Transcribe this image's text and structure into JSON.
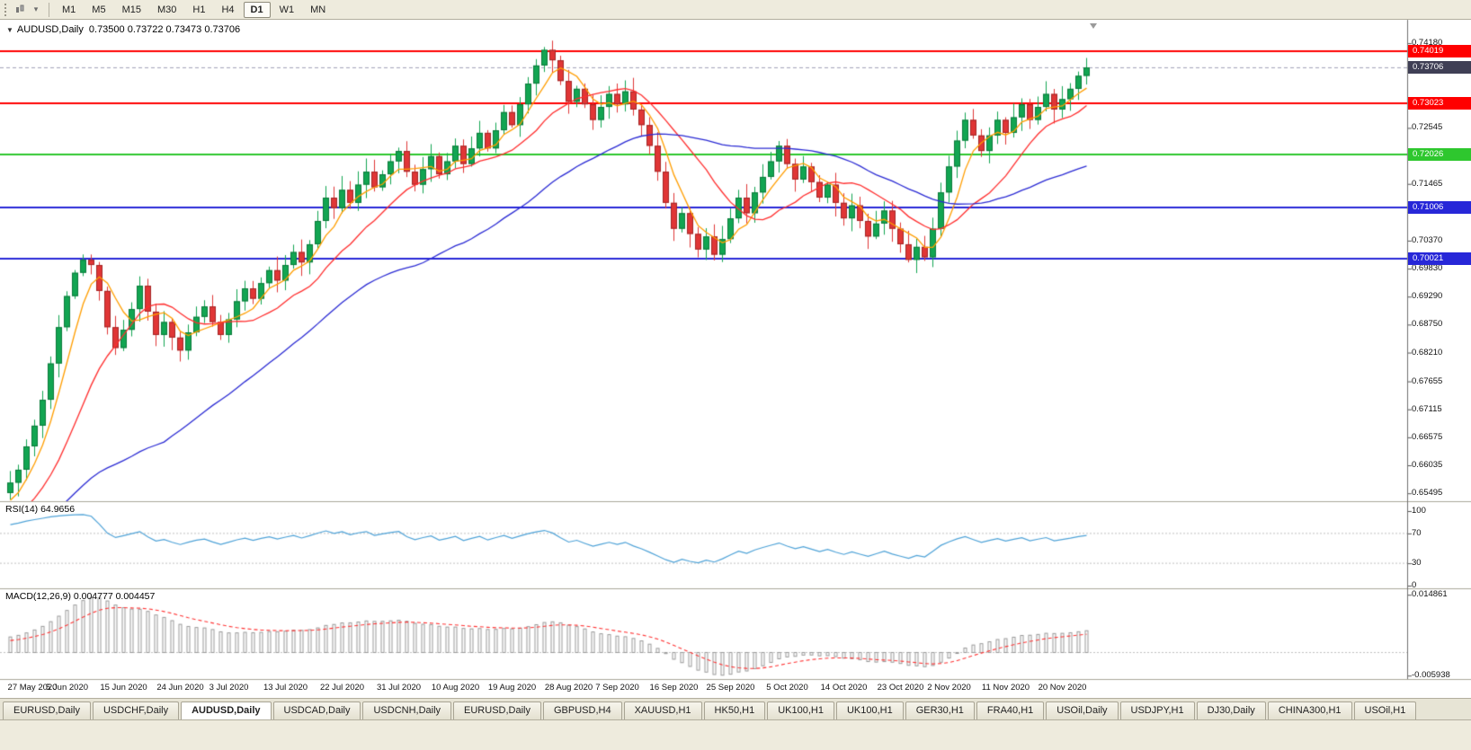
{
  "toolbar": {
    "timeframes": [
      "M1",
      "M5",
      "M15",
      "M30",
      "H1",
      "H4",
      "D1",
      "W1",
      "MN"
    ],
    "active_timeframe": "D1"
  },
  "window": {
    "title": "AUDUSD,Daily",
    "ohlc": "0.73500 0.73722 0.73473 0.73706"
  },
  "chart_data": {
    "type": "candlestick",
    "symbol": "AUDUSD",
    "timeframe": "Daily",
    "ylim": [
      0.6535,
      0.7432
    ],
    "y_ticks": [
      "0.74180",
      "0.72545",
      "0.71465",
      "0.70920",
      "0.70370",
      "0.69830",
      "0.69290",
      "0.68750",
      "0.68210",
      "0.67655",
      "0.67115",
      "0.66575",
      "0.66035",
      "0.65495"
    ],
    "x_labels": [
      "27 May 2020",
      "5 Jun 2020",
      "15 Jun 2020",
      "24 Jun 2020",
      "3 Jul 2020",
      "13 Jul 2020",
      "22 Jul 2020",
      "31 Jul 2020",
      "10 Aug 2020",
      "19 Aug 2020",
      "28 Aug 2020",
      "7 Sep 2020",
      "16 Sep 2020",
      "25 Sep 2020",
      "5 Oct 2020",
      "14 Oct 2020",
      "23 Oct 2020",
      "2 Nov 2020",
      "11 Nov 2020",
      "20 Nov 2020"
    ],
    "levels": [
      {
        "price": 0.74019,
        "badge": "0.74019",
        "color": "#ff0000"
      },
      {
        "price": 0.73023,
        "badge": "0.73023",
        "color": "#ff0000"
      },
      {
        "price": 0.72026,
        "badge": "0.72026",
        "color": "#2ec72e"
      },
      {
        "price": 0.71006,
        "badge": "0.71006",
        "color": "#2727d8"
      },
      {
        "price": 0.70021,
        "badge": "0.70021",
        "color": "#2727d8"
      }
    ],
    "current_price": {
      "value": 0.73706,
      "badge": "0.73706",
      "color": "#3f3f55"
    },
    "bid_line_color": "#a0a0b8",
    "candle_colors": {
      "up": "#12a552",
      "down": "#e03636",
      "up_border": "#0b7a3a",
      "down_border": "#a32626"
    },
    "moving_averages": [
      {
        "period": 5,
        "color": "#ff9e00"
      },
      {
        "period": 13,
        "color": "#ff2e2e"
      },
      {
        "period": 40,
        "color": "#2b2bd4"
      }
    ],
    "warmup_closes": [
      0.638,
      0.6395,
      0.6385,
      0.6405,
      0.642,
      0.641,
      0.643,
      0.6445,
      0.6435,
      0.6455,
      0.647,
      0.646,
      0.648,
      0.6495,
      0.6485,
      0.6505,
      0.652,
      0.651,
      0.653,
      0.655
    ],
    "closes": [
      0.657,
      0.6595,
      0.664,
      0.668,
      0.673,
      0.68,
      0.687,
      0.693,
      0.6975,
      0.7,
      0.699,
      0.694,
      0.687,
      0.683,
      0.6865,
      0.6905,
      0.695,
      0.69,
      0.6855,
      0.688,
      0.685,
      0.6825,
      0.686,
      0.689,
      0.691,
      0.688,
      0.6855,
      0.6885,
      0.692,
      0.6945,
      0.6925,
      0.6955,
      0.698,
      0.696,
      0.699,
      0.7015,
      0.6995,
      0.703,
      0.7075,
      0.712,
      0.71,
      0.7135,
      0.711,
      0.7145,
      0.717,
      0.714,
      0.7165,
      0.719,
      0.721,
      0.717,
      0.7145,
      0.7175,
      0.72,
      0.7165,
      0.719,
      0.722,
      0.7185,
      0.7215,
      0.7245,
      0.7215,
      0.725,
      0.7285,
      0.726,
      0.73,
      0.734,
      0.7375,
      0.7405,
      0.7385,
      0.7345,
      0.7305,
      0.733,
      0.73,
      0.727,
      0.7295,
      0.732,
      0.73,
      0.7325,
      0.729,
      0.726,
      0.722,
      0.717,
      0.711,
      0.706,
      0.709,
      0.705,
      0.702,
      0.7045,
      0.701,
      0.704,
      0.708,
      0.712,
      0.709,
      0.713,
      0.716,
      0.719,
      0.722,
      0.7185,
      0.7155,
      0.718,
      0.715,
      0.712,
      0.7145,
      0.711,
      0.708,
      0.7105,
      0.7075,
      0.7045,
      0.707,
      0.7095,
      0.706,
      0.703,
      0.7,
      0.7025,
      0.7005,
      0.706,
      0.713,
      0.718,
      0.723,
      0.727,
      0.724,
      0.721,
      0.724,
      0.727,
      0.7245,
      0.7275,
      0.73,
      0.727,
      0.7295,
      0.732,
      0.729,
      0.731,
      0.733,
      0.7355,
      0.7371
    ]
  },
  "rsi_panel": {
    "label": "RSI(14) 64.9656",
    "period": 14,
    "current": 64.9656,
    "axis_ticks": [
      "100",
      "70",
      "30",
      "0"
    ],
    "level_lines": [
      70,
      30
    ],
    "line_color": "#4fa3d8"
  },
  "macd_panel": {
    "label": "MACD(12,26,9) 0.004777 0.004457",
    "macd_value": 0.004777,
    "signal_value": 0.004457,
    "axis_ticks": [
      "0.014861",
      "-0.005938"
    ],
    "hist_color": "#9a9a9a",
    "signal_color": "#ff3434"
  },
  "tabs": [
    {
      "label": "EURUSD,Daily",
      "active": false
    },
    {
      "label": "USDCHF,Daily",
      "active": false
    },
    {
      "label": "AUDUSD,Daily",
      "active": true
    },
    {
      "label": "USDCAD,Daily",
      "active": false
    },
    {
      "label": "USDCNH,Daily",
      "active": false
    },
    {
      "label": "EURUSD,Daily",
      "active": false
    },
    {
      "label": "GBPUSD,H4",
      "active": false
    },
    {
      "label": "XAUUSD,H1",
      "active": false
    },
    {
      "label": "HK50,H1",
      "active": false
    },
    {
      "label": "UK100,H1",
      "active": false
    },
    {
      "label": "UK100,H1",
      "active": false
    },
    {
      "label": "GER30,H1",
      "active": false
    },
    {
      "label": "FRA40,H1",
      "active": false
    },
    {
      "label": "USOil,Daily",
      "active": false
    },
    {
      "label": "USDJPY,H1",
      "active": false
    },
    {
      "label": "DJ30,Daily",
      "active": false
    },
    {
      "label": "CHINA300,H1",
      "active": false
    },
    {
      "label": "USOil,H1",
      "active": false
    }
  ]
}
